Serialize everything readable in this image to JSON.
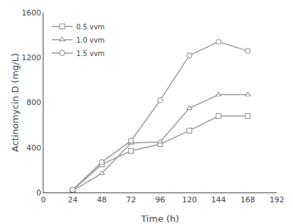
{
  "chart_data": {
    "type": "line",
    "x": [
      24,
      48,
      72,
      96,
      120,
      144,
      168
    ],
    "series": [
      {
        "name": "0.5 vvm",
        "values": [
          20,
          250,
          370,
          430,
          550,
          680,
          680
        ],
        "marker": "square"
      },
      {
        "name": "1.0 vvm",
        "values": [
          15,
          170,
          440,
          450,
          750,
          870,
          870
        ],
        "marker": "triangle-up"
      },
      {
        "name": "1.5 vvm",
        "values": [
          25,
          270,
          460,
          820,
          1220,
          1340,
          1260
        ],
        "marker": "circle"
      }
    ],
    "color": "#999999",
    "xlabel": "Time (h)",
    "ylabel": "Actinomycin D (mg/L)",
    "xlim": [
      0,
      192
    ],
    "ylim": [
      0,
      1600
    ],
    "xticks": [
      0,
      24,
      48,
      72,
      96,
      120,
      144,
      168,
      192
    ],
    "yticks": [
      0,
      400,
      800,
      1200,
      1600
    ],
    "legend": "upper left",
    "grid": false
  }
}
